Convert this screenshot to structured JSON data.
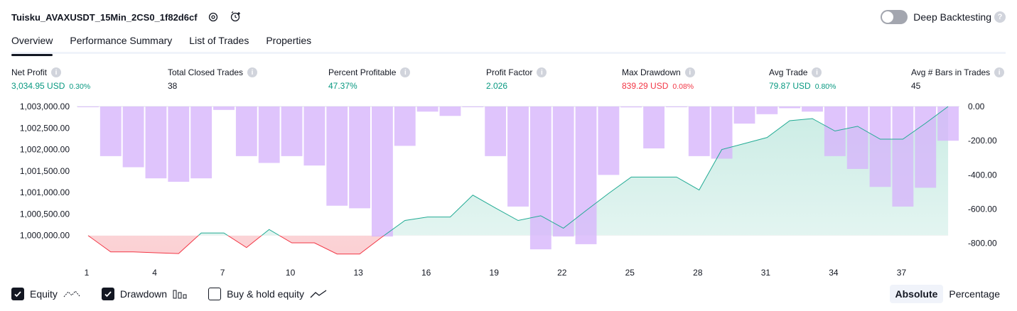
{
  "header": {
    "title": "Tuisku_AVAXUSDT_15Min_2CS0_1f82d6cf",
    "deep_backtesting_label": "Deep Backtesting",
    "deep_backtesting_enabled": false
  },
  "tabs": [
    {
      "label": "Overview",
      "active": true
    },
    {
      "label": "Performance Summary",
      "active": false
    },
    {
      "label": "List of Trades",
      "active": false
    },
    {
      "label": "Properties",
      "active": false
    }
  ],
  "metrics": {
    "net_profit": {
      "label": "Net Profit",
      "value": "3,034.95 USD",
      "pct": "0.30%"
    },
    "total_closed_trades": {
      "label": "Total Closed Trades",
      "value": "38"
    },
    "percent_profitable": {
      "label": "Percent Profitable",
      "value": "47.37%"
    },
    "profit_factor": {
      "label": "Profit Factor",
      "value": "2.026"
    },
    "max_drawdown": {
      "label": "Max Drawdown",
      "value": "839.29 USD",
      "pct": "0.08%"
    },
    "avg_trade": {
      "label": "Avg Trade",
      "value": "79.87 USD",
      "pct": "0.80%"
    },
    "avg_bars": {
      "label": "Avg # Bars in Trades",
      "value": "45"
    }
  },
  "legend": {
    "equity": {
      "label": "Equity",
      "checked": true
    },
    "drawdown": {
      "label": "Drawdown",
      "checked": true
    },
    "buy_hold": {
      "label": "Buy & hold equity",
      "checked": false
    }
  },
  "mode": {
    "absolute_label": "Absolute",
    "percentage_label": "Percentage",
    "selected": "Absolute"
  },
  "colors": {
    "equity_line": "#22ab94",
    "equity_fill": "#c8ebe3",
    "loss_line": "#f23645",
    "loss_fill": "#fbd0d3",
    "drawdown_bar": "#d6b3fb",
    "drawdown_on_fill": "#b4b3e8",
    "accent": "#131722"
  },
  "chart_data": {
    "type": "area",
    "series": [
      {
        "name": "Equity",
        "x": [
          1,
          2,
          3,
          4,
          5,
          6,
          7,
          8,
          9,
          10,
          11,
          12,
          13,
          14,
          15,
          16,
          17,
          18,
          19,
          20,
          21,
          22,
          23,
          24,
          25,
          26,
          27,
          28,
          29,
          30,
          31,
          32,
          33,
          34,
          35,
          36,
          37,
          38,
          39
        ],
        "values": [
          1000000,
          999620,
          999620,
          999600,
          999580,
          1000060,
          1000060,
          999720,
          1000140,
          999830,
          999830,
          999570,
          999570,
          999970,
          1000350,
          1000430,
          1000430,
          1000940,
          1000640,
          1000350,
          1000460,
          1000170,
          1000580,
          1000980,
          1001360,
          1001360,
          1001360,
          1001060,
          1002000,
          1002140,
          1002280,
          1002670,
          1002720,
          1002430,
          1002540,
          1002240,
          1002240,
          1002610,
          1003000
        ]
      },
      {
        "name": "Drawdown",
        "x": [
          1,
          2,
          3,
          4,
          5,
          6,
          7,
          8,
          9,
          10,
          11,
          12,
          13,
          14,
          15,
          16,
          17,
          18,
          19,
          20,
          21,
          22,
          23,
          24,
          25,
          26,
          27,
          28,
          29,
          30,
          31,
          32,
          33,
          34,
          35,
          36,
          37,
          38,
          39
        ],
        "values": [
          0,
          -290,
          -355,
          -420,
          -440,
          -420,
          -20,
          -290,
          -330,
          -290,
          -345,
          -580,
          -595,
          -760,
          -230,
          -30,
          -55,
          0,
          -290,
          -585,
          -835,
          -760,
          -805,
          -400,
          -5,
          -245,
          0,
          -290,
          -305,
          -100,
          -45,
          -10,
          -30,
          -290,
          -365,
          -470,
          -585,
          -475,
          -200
        ]
      }
    ],
    "y_left_ticks": [
      "1,003,000.00",
      "1,002,500.00",
      "1,002,000.00",
      "1,001,500.00",
      "1,001,000.00",
      "1,000,500.00",
      "1,000,000.00"
    ],
    "y_right_ticks": [
      "0.00",
      "-200.00",
      "-400.00",
      "-600.00",
      "-800.00"
    ],
    "x_ticks": [
      "1",
      "4",
      "7",
      "10",
      "13",
      "16",
      "19",
      "22",
      "25",
      "28",
      "31",
      "34",
      "37"
    ],
    "ylim_left": [
      999500,
      1003000
    ],
    "ylim_right": [
      -880,
      0
    ]
  }
}
